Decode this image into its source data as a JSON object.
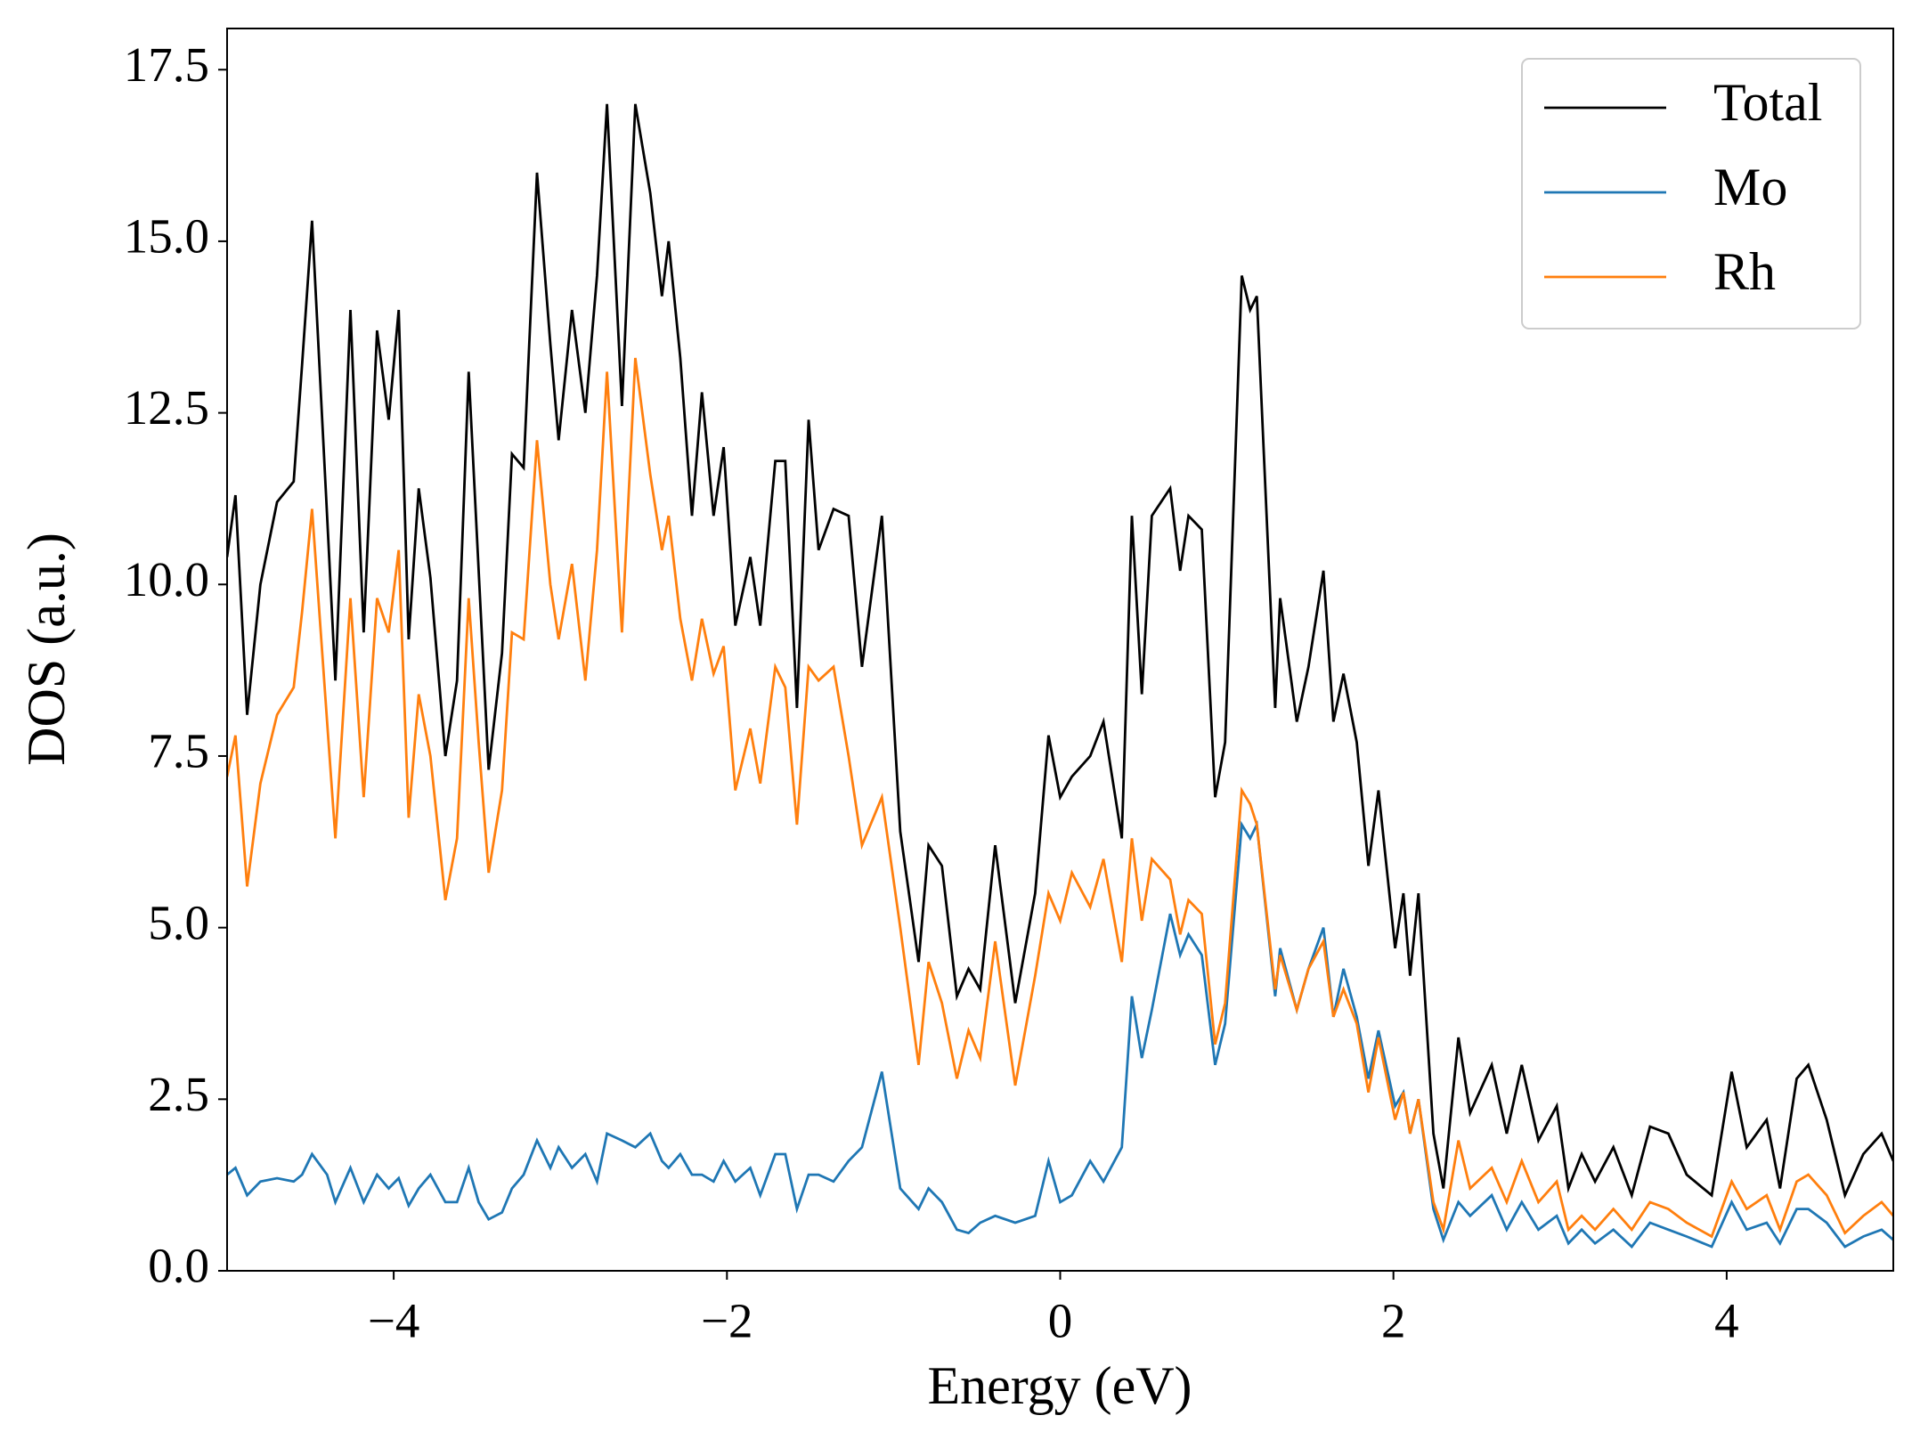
{
  "chart_data": {
    "type": "line",
    "xlabel": "Energy (eV)",
    "ylabel": "DOS (a.u.)",
    "x": [
      -5.0,
      -4.95,
      -4.88,
      -4.8,
      -4.7,
      -4.6,
      -4.55,
      -4.49,
      -4.4,
      -4.35,
      -4.26,
      -4.18,
      -4.1,
      -4.03,
      -3.97,
      -3.91,
      -3.85,
      -3.78,
      -3.69,
      -3.62,
      -3.55,
      -3.49,
      -3.43,
      -3.35,
      -3.29,
      -3.22,
      -3.14,
      -3.06,
      -3.01,
      -2.93,
      -2.85,
      -2.78,
      -2.72,
      -2.63,
      -2.55,
      -2.46,
      -2.39,
      -2.35,
      -2.28,
      -2.21,
      -2.15,
      -2.08,
      -2.02,
      -1.95,
      -1.86,
      -1.8,
      -1.71,
      -1.65,
      -1.58,
      -1.51,
      -1.45,
      -1.36,
      -1.27,
      -1.19,
      -1.07,
      -0.96,
      -0.85,
      -0.79,
      -0.71,
      -0.62,
      -0.55,
      -0.48,
      -0.39,
      -0.27,
      -0.15,
      -0.07,
      0.0,
      0.07,
      0.18,
      0.26,
      0.37,
      0.43,
      0.49,
      0.55,
      0.66,
      0.72,
      0.77,
      0.85,
      0.93,
      0.99,
      1.09,
      1.14,
      1.18,
      1.29,
      1.32,
      1.42,
      1.49,
      1.58,
      1.64,
      1.7,
      1.78,
      1.85,
      1.91,
      2.01,
      2.06,
      2.1,
      2.15,
      2.24,
      2.3,
      2.39,
      2.46,
      2.59,
      2.68,
      2.77,
      2.87,
      2.98,
      3.05,
      3.13,
      3.21,
      3.32,
      3.43,
      3.54,
      3.65,
      3.76,
      3.91,
      4.03,
      4.12,
      4.24,
      4.32,
      4.42,
      4.49,
      4.6,
      4.71,
      4.82,
      4.93,
      5.0
    ],
    "series": [
      {
        "name": "Total",
        "color": "#000000",
        "values": [
          10.4,
          11.3,
          8.1,
          10.0,
          11.2,
          11.5,
          13.2,
          15.3,
          11.0,
          8.6,
          14.0,
          9.3,
          13.7,
          12.4,
          14.0,
          9.2,
          11.4,
          10.1,
          7.5,
          8.6,
          13.1,
          10.2,
          7.3,
          9.0,
          11.9,
          11.7,
          16.0,
          13.5,
          12.1,
          14.0,
          12.5,
          14.5,
          17.0,
          12.6,
          17.0,
          15.7,
          14.2,
          15.0,
          13.3,
          11.0,
          12.8,
          11.0,
          12.0,
          9.4,
          10.4,
          9.4,
          11.8,
          11.8,
          8.2,
          12.4,
          10.5,
          11.1,
          11.0,
          8.8,
          11.0,
          6.4,
          4.5,
          6.2,
          5.9,
          4.0,
          4.4,
          4.1,
          6.2,
          3.9,
          5.5,
          7.8,
          6.9,
          7.2,
          7.5,
          8.0,
          6.3,
          11.0,
          8.4,
          11.0,
          11.4,
          10.2,
          11.0,
          10.8,
          6.9,
          7.7,
          14.5,
          14.0,
          14.2,
          8.2,
          9.8,
          8.0,
          8.8,
          10.2,
          8.0,
          8.7,
          7.7,
          5.9,
          7.0,
          4.7,
          5.5,
          4.3,
          5.5,
          2.0,
          1.2,
          3.4,
          2.3,
          3.0,
          2.0,
          3.0,
          1.9,
          2.4,
          1.2,
          1.7,
          1.3,
          1.8,
          1.1,
          2.1,
          2.0,
          1.4,
          1.1,
          2.9,
          1.8,
          2.2,
          1.2,
          2.8,
          3.0,
          2.2,
          1.1,
          1.7,
          2.0,
          1.6
        ]
      },
      {
        "name": "Mo",
        "color": "#1f77b4",
        "values": [
          1.4,
          1.5,
          1.1,
          1.3,
          1.35,
          1.3,
          1.4,
          1.7,
          1.4,
          1.0,
          1.5,
          1.0,
          1.4,
          1.2,
          1.35,
          0.95,
          1.2,
          1.4,
          1.0,
          1.0,
          1.5,
          1.0,
          0.75,
          0.85,
          1.2,
          1.4,
          1.9,
          1.5,
          1.8,
          1.5,
          1.7,
          1.3,
          2.0,
          1.9,
          1.8,
          2.0,
          1.6,
          1.5,
          1.7,
          1.4,
          1.4,
          1.3,
          1.6,
          1.3,
          1.5,
          1.1,
          1.7,
          1.7,
          0.9,
          1.4,
          1.4,
          1.3,
          1.6,
          1.8,
          2.9,
          1.2,
          0.9,
          1.2,
          1.0,
          0.6,
          0.55,
          0.7,
          0.8,
          0.7,
          0.8,
          1.6,
          1.0,
          1.1,
          1.6,
          1.3,
          1.8,
          4.0,
          3.1,
          3.8,
          5.2,
          4.6,
          4.9,
          4.6,
          3.0,
          3.6,
          6.5,
          6.3,
          6.5,
          4.0,
          4.7,
          3.8,
          4.4,
          5.0,
          3.7,
          4.4,
          3.7,
          2.8,
          3.5,
          2.4,
          2.6,
          2.0,
          2.5,
          0.9,
          0.45,
          1.0,
          0.8,
          1.1,
          0.6,
          1.0,
          0.6,
          0.8,
          0.4,
          0.6,
          0.4,
          0.6,
          0.35,
          0.7,
          0.6,
          0.5,
          0.35,
          1.0,
          0.6,
          0.7,
          0.4,
          0.9,
          0.9,
          0.7,
          0.35,
          0.5,
          0.6,
          0.45
        ]
      },
      {
        "name": "Rh",
        "color": "#ff7f0e",
        "values": [
          7.2,
          7.8,
          5.6,
          7.1,
          8.1,
          8.5,
          9.6,
          11.1,
          8.0,
          6.3,
          9.8,
          6.9,
          9.8,
          9.3,
          10.5,
          6.6,
          8.4,
          7.5,
          5.4,
          6.3,
          9.8,
          7.7,
          5.8,
          7.0,
          9.3,
          9.2,
          12.1,
          10.0,
          9.2,
          10.3,
          8.6,
          10.5,
          13.1,
          9.3,
          13.3,
          11.6,
          10.5,
          11.0,
          9.5,
          8.6,
          9.5,
          8.7,
          9.1,
          7.0,
          7.9,
          7.1,
          8.8,
          8.5,
          6.5,
          8.8,
          8.6,
          8.8,
          7.5,
          6.2,
          6.9,
          5.0,
          3.0,
          4.5,
          3.9,
          2.8,
          3.5,
          3.1,
          4.8,
          2.7,
          4.3,
          5.5,
          5.1,
          5.8,
          5.3,
          6.0,
          4.5,
          6.3,
          5.1,
          6.0,
          5.7,
          4.9,
          5.4,
          5.2,
          3.3,
          3.9,
          7.0,
          6.8,
          6.5,
          4.1,
          4.6,
          3.8,
          4.4,
          4.8,
          3.7,
          4.1,
          3.6,
          2.6,
          3.4,
          2.2,
          2.6,
          2.0,
          2.5,
          1.0,
          0.6,
          1.9,
          1.2,
          1.5,
          1.0,
          1.6,
          1.0,
          1.3,
          0.6,
          0.8,
          0.6,
          0.9,
          0.6,
          1.0,
          0.9,
          0.7,
          0.5,
          1.3,
          0.9,
          1.1,
          0.6,
          1.3,
          1.4,
          1.1,
          0.55,
          0.8,
          1.0,
          0.8
        ]
      }
    ],
    "xlim": [
      -5,
      5
    ],
    "xticks": [
      {
        "value": -4,
        "label": "−4"
      },
      {
        "value": -2,
        "label": "−2"
      },
      0,
      2,
      4
    ],
    "ylim": [
      0,
      18.1
    ],
    "yticks": [
      {
        "value": 0,
        "label": "0.0"
      },
      2.5,
      {
        "value": 5,
        "label": "5.0"
      },
      7.5,
      {
        "value": 10,
        "label": "10.0"
      },
      12.5,
      {
        "value": 15,
        "label": "15.0"
      },
      17.5
    ],
    "grid": false,
    "legend": "upper right"
  }
}
